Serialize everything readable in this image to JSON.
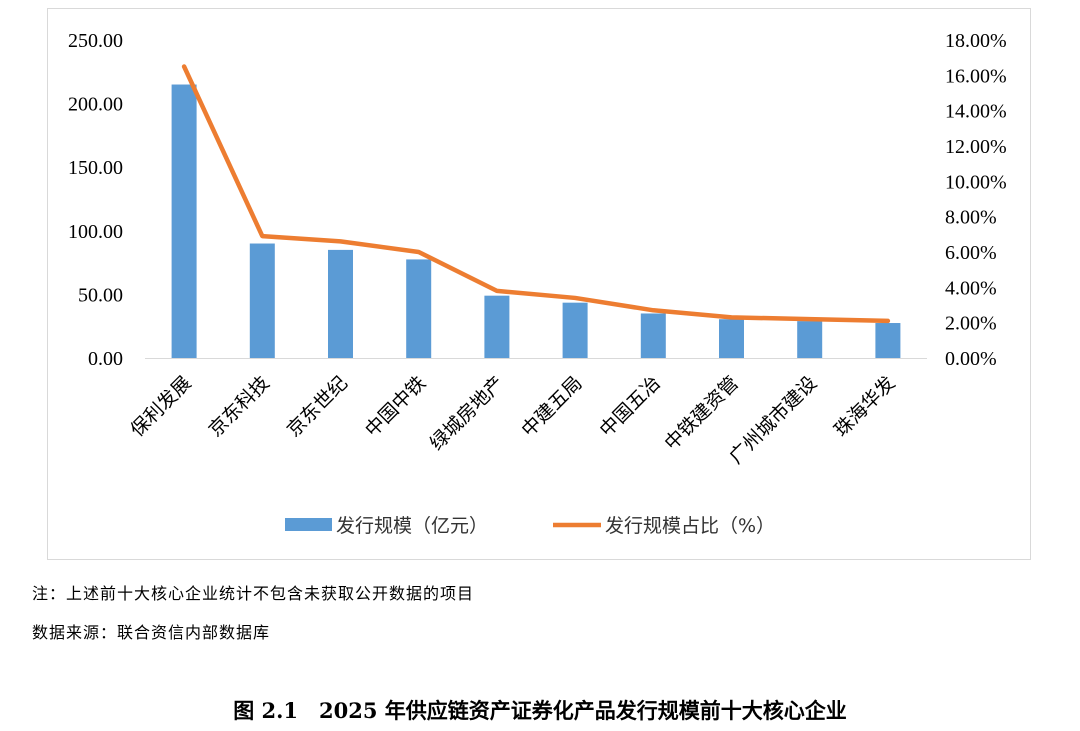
{
  "chart_data": {
    "type": "bar",
    "categories": [
      "保利发展",
      "京东科技",
      "京东世纪",
      "中国中铁",
      "绿城房地产",
      "中建五局",
      "中国五冶",
      "中铁建资管",
      "广州城市建设",
      "珠海华发"
    ],
    "series": [
      {
        "name": "发行规模（亿元）",
        "type": "bar",
        "axis": "left",
        "color": "#5b9bd5",
        "values": [
          215.0,
          90.0,
          85.0,
          77.5,
          49.0,
          43.5,
          35.0,
          30.5,
          29.0,
          27.5
        ]
      },
      {
        "name": "发行规模占比（%）",
        "type": "line",
        "axis": "right",
        "color": "#ed7d31",
        "values": [
          16.5,
          6.9,
          6.6,
          6.0,
          3.8,
          3.4,
          2.7,
          2.3,
          2.2,
          2.1
        ]
      }
    ],
    "y_left": {
      "ylim": [
        0,
        250
      ],
      "ticks": [
        "0.00",
        "50.00",
        "100.00",
        "150.00",
        "200.00",
        "250.00"
      ]
    },
    "y_right": {
      "ylim": [
        0,
        18
      ],
      "ticks": [
        "0.00%",
        "2.00%",
        "4.00%",
        "6.00%",
        "8.00%",
        "10.00%",
        "12.00%",
        "14.00%",
        "16.00%",
        "18.00%"
      ]
    },
    "grid": false,
    "legend_position": "bottom"
  },
  "notes": {
    "note": "注：上述前十大核心企业统计不包含未获取公开数据的项目",
    "source": "数据来源：联合资信内部数据库"
  },
  "caption": "图 2.1　2025 年供应链资产证券化产品发行规模前十大核心企业"
}
